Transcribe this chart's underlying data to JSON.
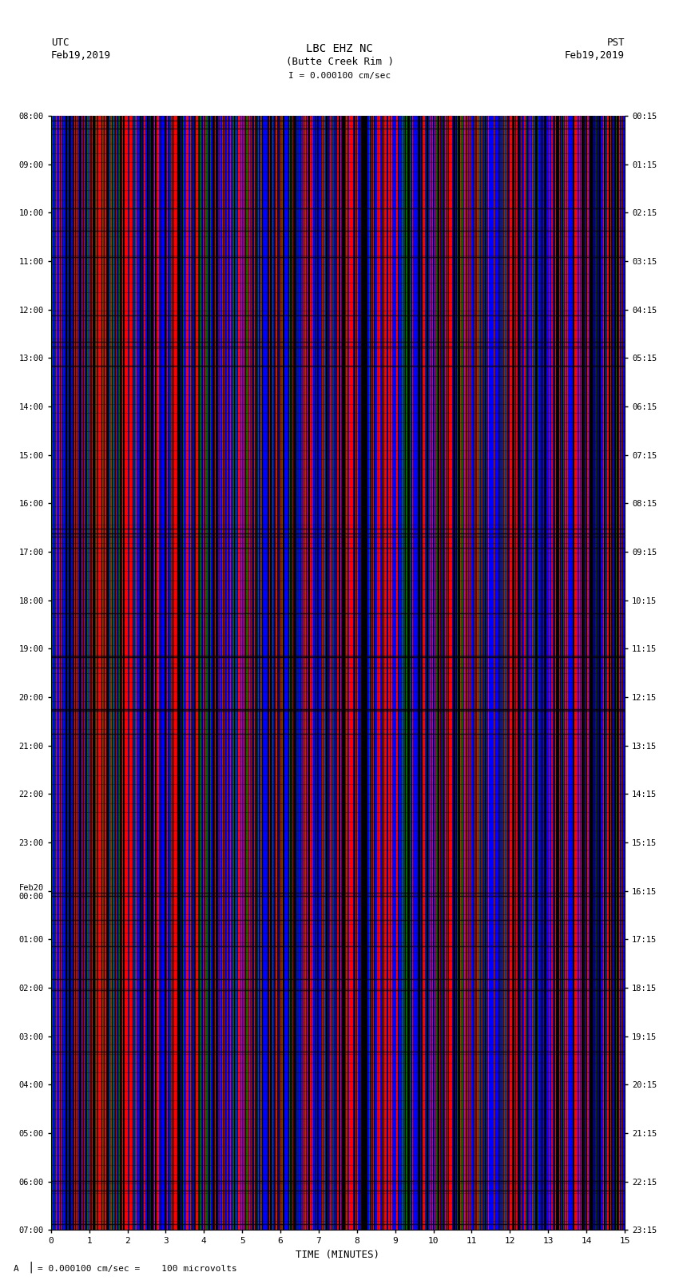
{
  "title_line1": "LBC EHZ NC",
  "title_line2": "(Butte Creek Rim )",
  "title_scale": "I = 0.000100 cm/sec",
  "label_utc": "UTC",
  "label_pst": "PST",
  "date_left": "Feb19,2019",
  "date_right": "Feb19,2019",
  "xlabel": "TIME (MINUTES)",
  "footer": "= 0.000100 cm/sec =    100 microvolts",
  "footer_prefix": "A",
  "utc_times": [
    "08:00",
    "09:00",
    "10:00",
    "11:00",
    "12:00",
    "13:00",
    "14:00",
    "15:00",
    "16:00",
    "17:00",
    "18:00",
    "19:00",
    "20:00",
    "21:00",
    "22:00",
    "23:00",
    "Feb20\n00:00",
    "01:00",
    "02:00",
    "03:00",
    "04:00",
    "05:00",
    "06:00",
    "07:00"
  ],
  "pst_times": [
    "00:15",
    "01:15",
    "02:15",
    "03:15",
    "04:15",
    "05:15",
    "06:15",
    "07:15",
    "08:15",
    "09:15",
    "10:15",
    "11:15",
    "12:15",
    "13:15",
    "14:15",
    "15:15",
    "16:15",
    "17:15",
    "18:15",
    "19:15",
    "20:15",
    "21:15",
    "22:15",
    "23:15"
  ],
  "x_ticks": [
    0,
    1,
    2,
    3,
    4,
    5,
    6,
    7,
    8,
    9,
    10,
    11,
    12,
    13,
    14,
    15
  ],
  "xlim": [
    0,
    15
  ],
  "ylim": [
    0,
    24
  ],
  "top_bar_color": "#00cc00",
  "background_color": "#000000",
  "fig_background": "#ffffff",
  "n_stripes": 800,
  "n_hlines": 120,
  "stripe_seed": 42,
  "hline_seed": 7
}
